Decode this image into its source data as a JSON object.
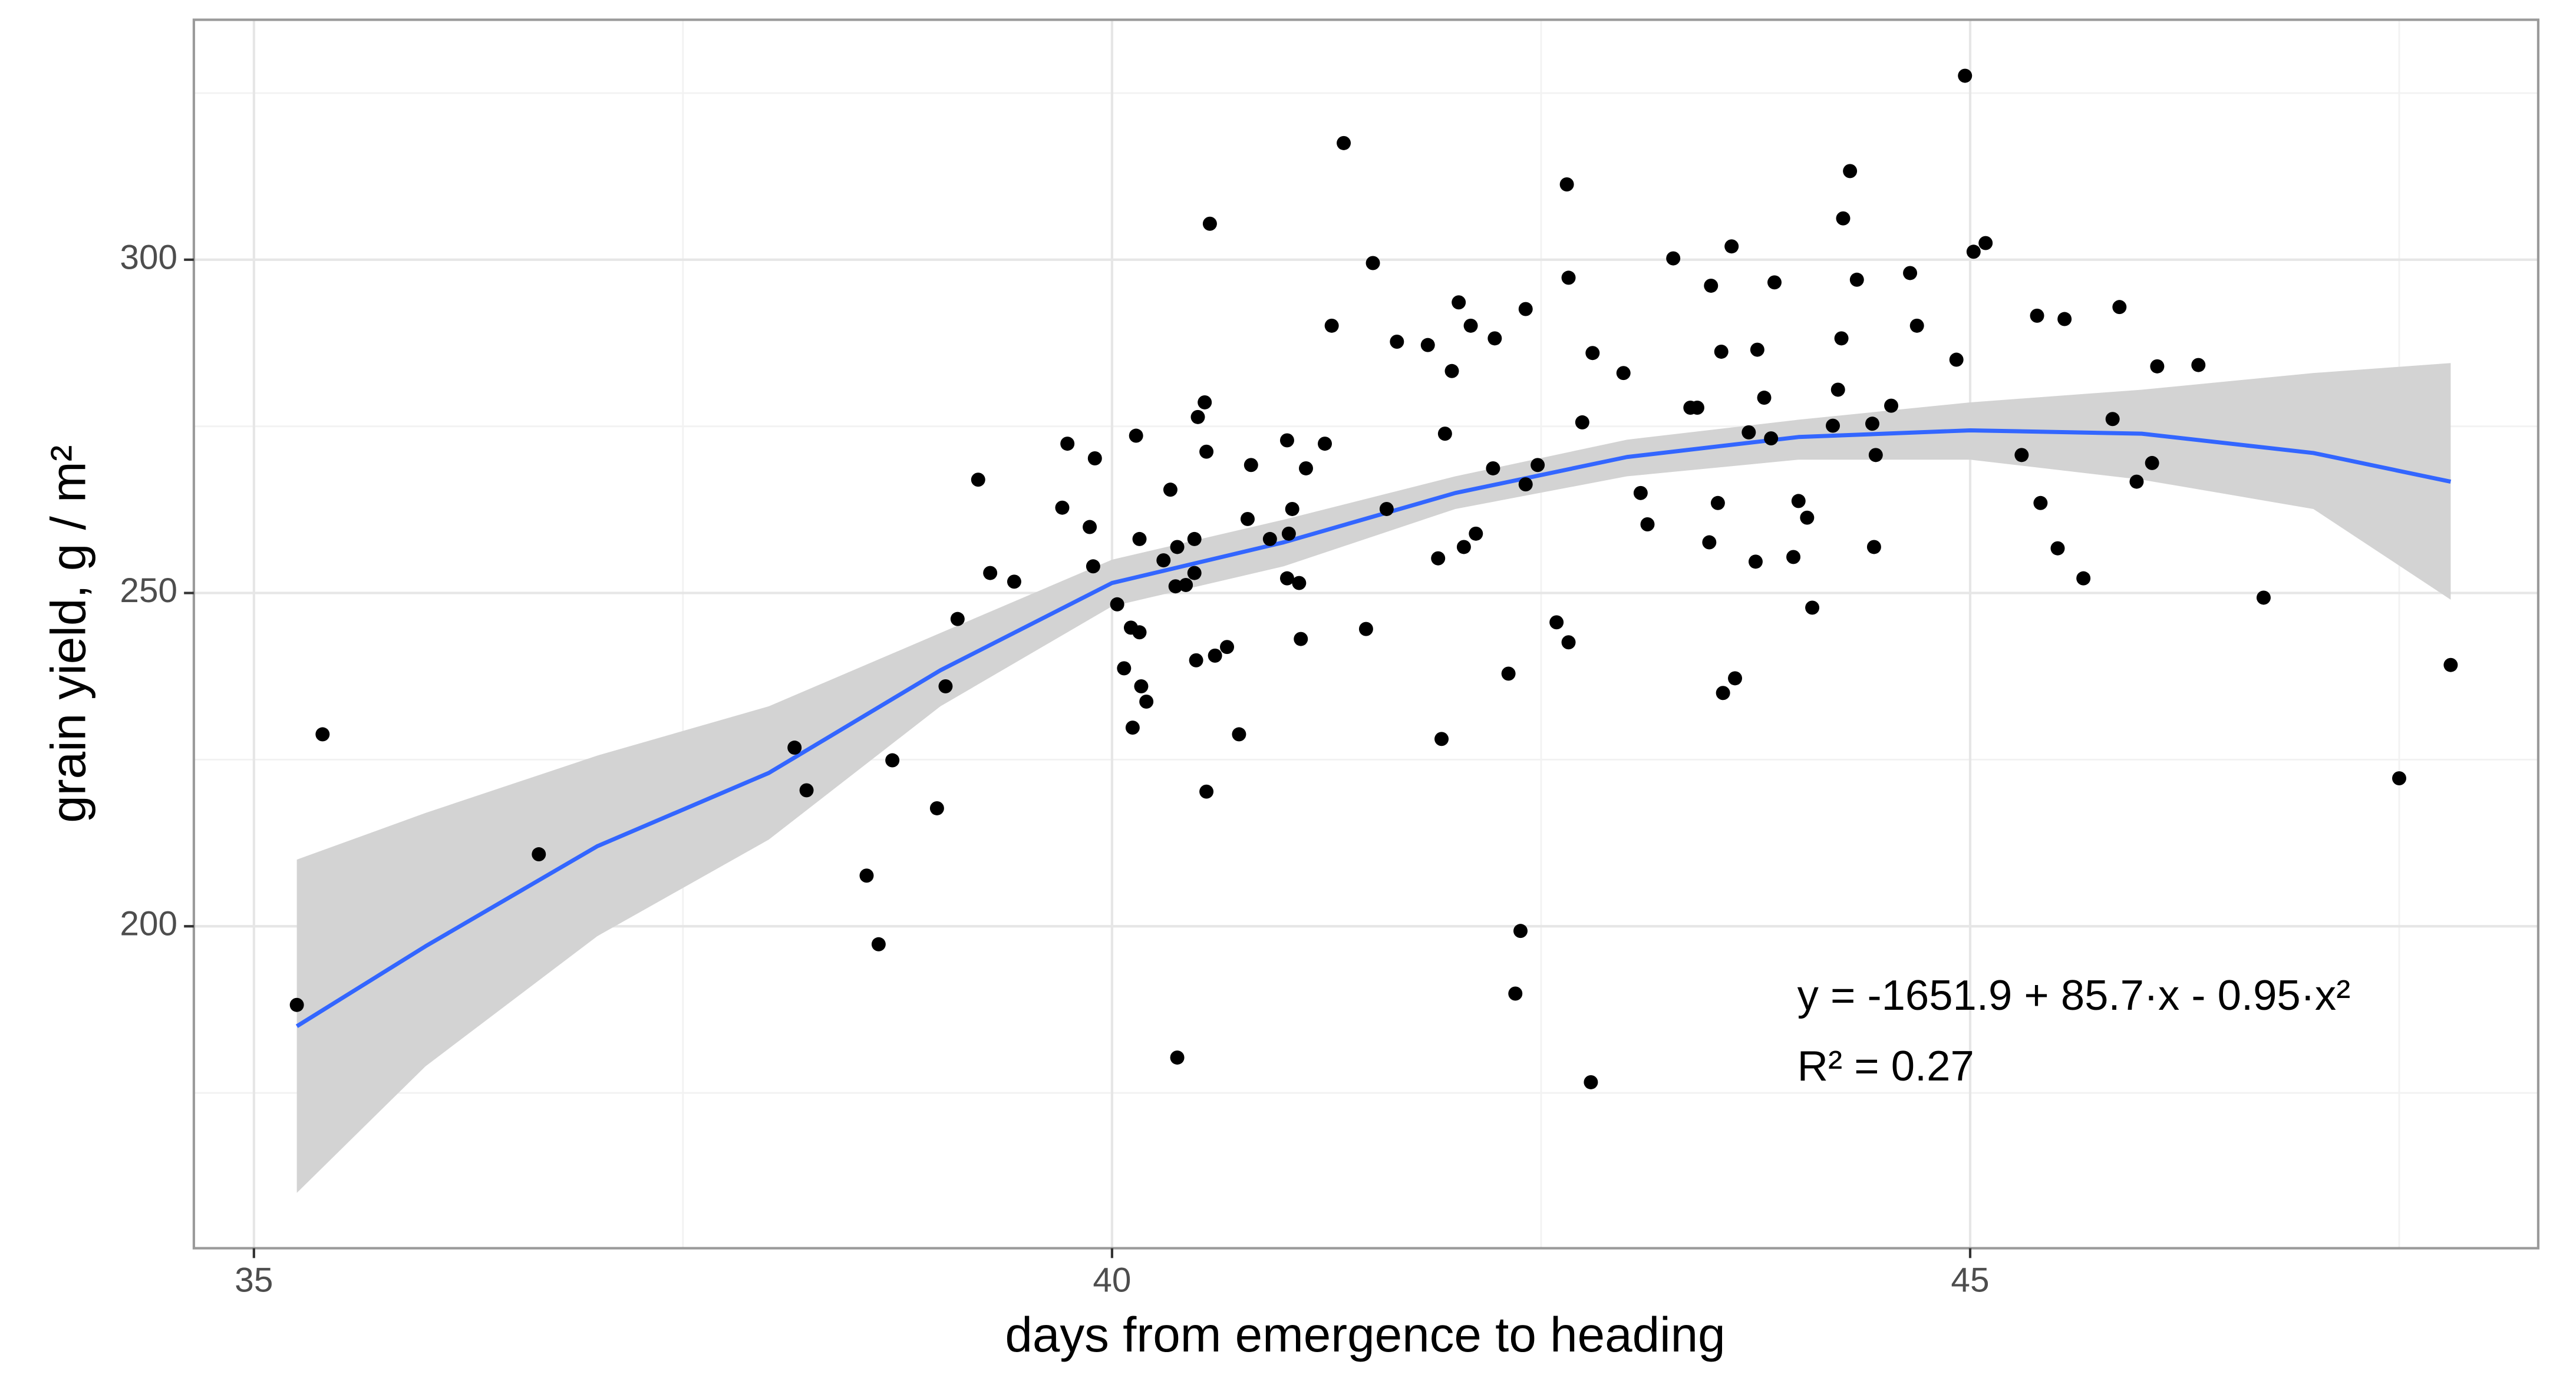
{
  "chart_data": {
    "type": "scatter",
    "x_label": "days from emergence to heading",
    "y_label": "grain yield, g / m²",
    "annotations": [
      "y = -1651.9 + 85.7·x - 0.95·x²",
      "R² = 0.27"
    ],
    "color": "#000000",
    "x": [
      35.25,
      35.4,
      36.66,
      38.15,
      38.22,
      38.57,
      38.64,
      38.72,
      38.98,
      39.03,
      39.1,
      39.22,
      39.29,
      39.43,
      39.71,
      39.74,
      39.87,
      39.89,
      39.9,
      40.03,
      40.07,
      40.11,
      40.12,
      40.14,
      40.16,
      40.16,
      40.17,
      40.2,
      40.3,
      40.34,
      40.37,
      40.38,
      40.38,
      40.43,
      40.48,
      40.48,
      40.49,
      40.5,
      40.54,
      40.55,
      40.55,
      40.57,
      40.6,
      40.67,
      40.74,
      40.79,
      40.81,
      40.92,
      41.02,
      41.02,
      41.03,
      41.05,
      41.09,
      41.1,
      41.13,
      41.24,
      41.28,
      41.35,
      41.48,
      41.52,
      41.6,
      41.66,
      41.84,
      41.9,
      41.92,
      41.94,
      41.98,
      42.02,
      42.05,
      42.09,
      42.12,
      42.22,
      42.23,
      42.31,
      42.35,
      42.38,
      42.41,
      42.41,
      42.48,
      42.59,
      42.65,
      42.66,
      42.66,
      42.74,
      42.79,
      42.8,
      42.98,
      43.08,
      43.12,
      43.27,
      43.37,
      43.41,
      43.48,
      43.49,
      43.53,
      43.55,
      43.56,
      43.61,
      43.63,
      43.71,
      43.75,
      43.76,
      43.8,
      43.84,
      43.86,
      43.97,
      44.0,
      44.05,
      44.08,
      44.2,
      44.23,
      44.25,
      44.26,
      44.3,
      44.34,
      44.43,
      44.44,
      44.45,
      44.54,
      44.65,
      44.69,
      44.92,
      44.97,
      45.02,
      45.09,
      45.3,
      45.39,
      45.41,
      45.51,
      45.55,
      45.66,
      45.83,
      45.87,
      45.97,
      46.06,
      46.09,
      46.33,
      46.71,
      47.5,
      47.8
    ],
    "values": [
      188.2,
      228.8,
      210.8,
      226.8,
      220.4,
      207.6,
      197.3,
      224.9,
      217.7,
      236.0,
      246.1,
      267.0,
      253.0,
      251.7,
      262.8,
      272.4,
      259.9,
      254.0,
      270.2,
      248.3,
      238.7,
      244.8,
      229.8,
      273.6,
      244.1,
      258.1,
      236.0,
      233.7,
      254.9,
      265.5,
      251.0,
      256.9,
      180.3,
      251.2,
      258.1,
      253.0,
      239.9,
      276.4,
      278.6,
      271.2,
      220.2,
      305.4,
      240.6,
      241.9,
      228.8,
      261.1,
      269.2,
      258.1,
      272.9,
      252.2,
      258.9,
      262.6,
      251.5,
      243.1,
      268.7,
      272.4,
      290.1,
      317.5,
      244.6,
      299.5,
      262.6,
      287.7,
      287.2,
      255.2,
      228.1,
      273.9,
      283.3,
      293.6,
      256.9,
      290.1,
      258.9,
      268.7,
      288.2,
      237.9,
      189.9,
      199.3,
      266.3,
      292.6,
      269.2,
      245.6,
      311.3,
      297.3,
      242.6,
      275.6,
      176.6,
      286.0,
      283.0,
      265.0,
      260.3,
      300.2,
      277.8,
      277.8,
      257.6,
      296.1,
      263.5,
      286.2,
      235.0,
      302.0,
      237.2,
      274.1,
      254.7,
      286.5,
      279.3,
      273.2,
      296.6,
      255.4,
      263.8,
      261.3,
      247.8,
      275.1,
      280.5,
      288.2,
      306.2,
      313.3,
      297.0,
      275.4,
      256.9,
      270.7,
      278.1,
      298.0,
      290.1,
      285.0,
      327.6,
      301.2,
      302.5,
      270.7,
      291.6,
      263.5,
      256.7,
      291.1,
      252.2,
      276.1,
      292.9,
      266.7,
      269.5,
      284.0,
      284.2,
      249.3,
      222.2,
      239.2
    ],
    "fit": {
      "color": "#3366ff",
      "band_color": "#d3d3d3",
      "x": [
        35.25,
        36,
        37,
        38,
        39,
        40,
        41,
        42,
        43,
        44,
        45,
        46,
        47,
        47.8
      ],
      "values": [
        185,
        197,
        212,
        223,
        238.4,
        251.5,
        257.6,
        265,
        270.4,
        273.4,
        274.4,
        273.9,
        271,
        266.7
      ],
      "lower": [
        160,
        179,
        198.5,
        213,
        233,
        248,
        254,
        262.6,
        267.5,
        270,
        270,
        267,
        262.6,
        249
      ],
      "upper": [
        210,
        217,
        225.6,
        233,
        244,
        255,
        261,
        267.5,
        273,
        276,
        278.6,
        280.5,
        283,
        284.5
      ]
    },
    "xlim": [
      34.65,
      48.31
    ],
    "ylim": [
      151.7,
      336
    ],
    "xticks": [
      35,
      40,
      45
    ],
    "yticks": [
      200,
      250,
      300
    ],
    "minor_xticks": [
      37.5,
      42.5,
      47.5
    ],
    "minor_yticks": [
      175,
      225,
      275,
      325
    ],
    "grid": true
  }
}
